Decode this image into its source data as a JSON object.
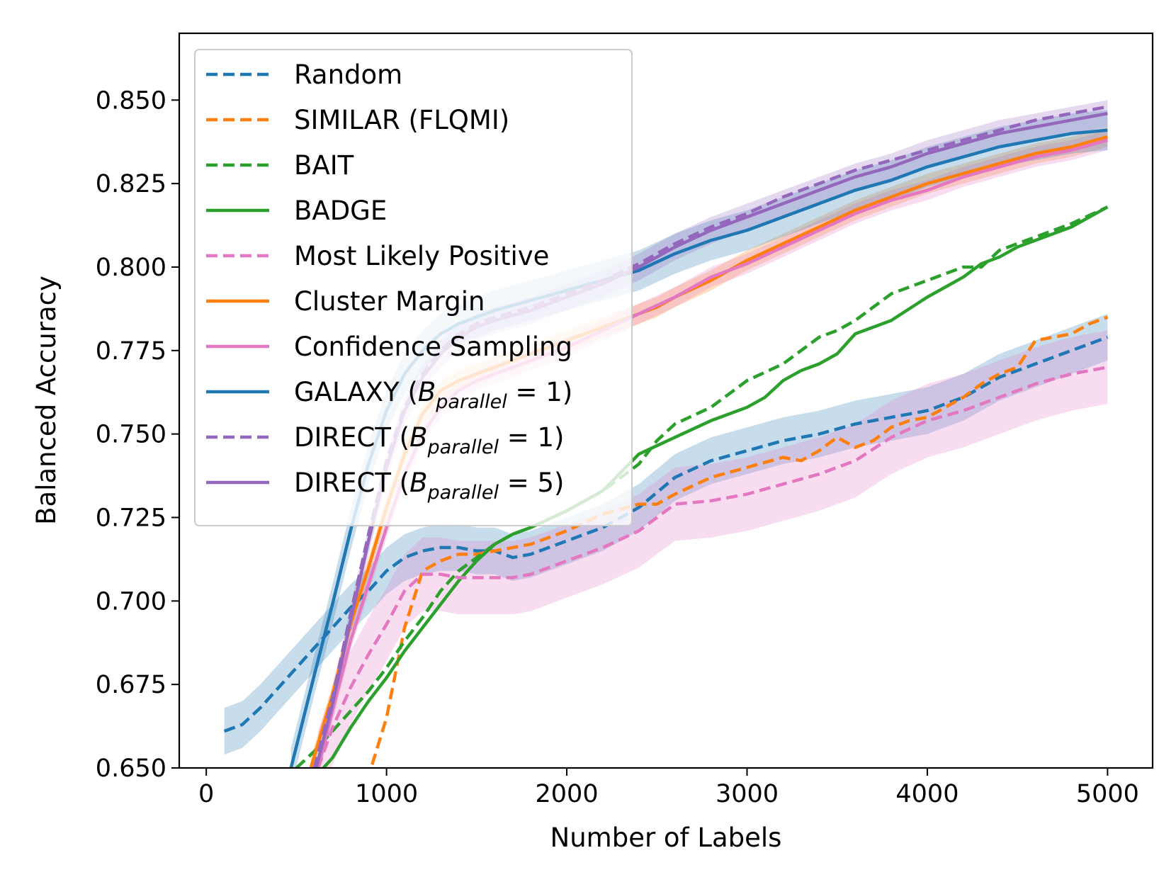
{
  "chart_data": {
    "type": "line",
    "xlabel": "Number of Labels",
    "ylabel": "Balanced Accuracy",
    "xlim": [
      -150,
      5250
    ],
    "ylim": [
      0.65,
      0.87
    ],
    "xticks": [
      0,
      1000,
      2000,
      3000,
      4000,
      5000
    ],
    "yticks": [
      0.65,
      0.675,
      0.7,
      0.725,
      0.75,
      0.775,
      0.8,
      0.825,
      0.85
    ],
    "xtick_labels": [
      "0",
      "1000",
      "2000",
      "3000",
      "4000",
      "5000"
    ],
    "ytick_labels": [
      "0.650",
      "0.675",
      "0.700",
      "0.725",
      "0.750",
      "0.775",
      "0.800",
      "0.825",
      "0.850"
    ],
    "grid": false,
    "legend_placement": "upper-left",
    "series": [
      {
        "name": "Random",
        "legend": [
          "Random"
        ],
        "color": "#1f77b4",
        "dashed": true,
        "band": 0.007,
        "x": [
          100,
          200,
          300,
          400,
          500,
          600,
          700,
          800,
          900,
          1000,
          1100,
          1200,
          1300,
          1400,
          1500,
          1600,
          1700,
          1800,
          1900,
          2000,
          2200,
          2400,
          2600,
          2800,
          3000,
          3200,
          3400,
          3600,
          3800,
          4000,
          4200,
          4400,
          4600,
          4800,
          5000
        ],
        "y": [
          0.661,
          0.663,
          0.668,
          0.674,
          0.68,
          0.686,
          0.692,
          0.698,
          0.703,
          0.709,
          0.713,
          0.715,
          0.716,
          0.716,
          0.715,
          0.715,
          0.713,
          0.714,
          0.716,
          0.718,
          0.722,
          0.728,
          0.737,
          0.742,
          0.745,
          0.748,
          0.75,
          0.753,
          0.755,
          0.757,
          0.761,
          0.767,
          0.771,
          0.775,
          0.779
        ]
      },
      {
        "name": "SIMILAR (FLQMI)",
        "legend": [
          "SIMILAR (FLQMI)"
        ],
        "color": "#ff7f0e",
        "dashed": true,
        "band": 0,
        "x": [
          920,
          1000,
          1100,
          1200,
          1300,
          1400,
          1500,
          1600,
          1700,
          1800,
          2000,
          2200,
          2400,
          2500,
          2600,
          2800,
          3000,
          3200,
          3300,
          3400,
          3500,
          3600,
          3700,
          3800,
          3900,
          4000,
          4200,
          4300,
          4400,
          4500,
          4600,
          4700,
          4800,
          4900,
          5000
        ],
        "y": [
          0.651,
          0.665,
          0.692,
          0.709,
          0.712,
          0.714,
          0.714,
          0.715,
          0.716,
          0.717,
          0.721,
          0.726,
          0.729,
          0.729,
          0.732,
          0.737,
          0.74,
          0.743,
          0.742,
          0.745,
          0.749,
          0.746,
          0.748,
          0.752,
          0.754,
          0.755,
          0.761,
          0.765,
          0.768,
          0.77,
          0.778,
          0.779,
          0.78,
          0.783,
          0.785
        ]
      },
      {
        "name": "BAIT",
        "legend": [
          "BAIT"
        ],
        "color": "#2ca02c",
        "dashed": true,
        "band": 0,
        "x": [
          500,
          600,
          700,
          800,
          900,
          1000,
          1100,
          1200,
          1300,
          1400,
          1500,
          1600,
          1700,
          1800,
          2000,
          2200,
          2400,
          2500,
          2600,
          2800,
          3000,
          3200,
          3400,
          3500,
          3600,
          3800,
          4000,
          4200,
          4300,
          4400,
          4600,
          4800,
          5000
        ],
        "y": [
          0.65,
          0.655,
          0.661,
          0.667,
          0.673,
          0.68,
          0.688,
          0.695,
          0.703,
          0.709,
          0.713,
          0.717,
          0.72,
          0.722,
          0.727,
          0.733,
          0.741,
          0.748,
          0.753,
          0.758,
          0.766,
          0.771,
          0.779,
          0.781,
          0.784,
          0.792,
          0.796,
          0.8,
          0.8,
          0.805,
          0.809,
          0.813,
          0.818
        ]
      },
      {
        "name": "BADGE",
        "legend": [
          "BADGE"
        ],
        "color": "#2ca02c",
        "dashed": false,
        "band": 0,
        "x": [
          650,
          700,
          800,
          900,
          1000,
          1100,
          1200,
          1300,
          1400,
          1500,
          1600,
          1700,
          1800,
          2000,
          2200,
          2400,
          2600,
          2800,
          3000,
          3100,
          3200,
          3300,
          3400,
          3500,
          3600,
          3800,
          4000,
          4100,
          4200,
          4300,
          4400,
          4500,
          4600,
          4800,
          4900,
          5000
        ],
        "y": [
          0.65,
          0.653,
          0.662,
          0.67,
          0.677,
          0.685,
          0.692,
          0.699,
          0.706,
          0.712,
          0.717,
          0.72,
          0.722,
          0.727,
          0.733,
          0.744,
          0.749,
          0.754,
          0.758,
          0.761,
          0.766,
          0.769,
          0.771,
          0.774,
          0.78,
          0.784,
          0.791,
          0.794,
          0.797,
          0.801,
          0.803,
          0.806,
          0.808,
          0.812,
          0.815,
          0.818
        ]
      },
      {
        "name": "Most Likely Positive",
        "legend": [
          "Most Likely Positive"
        ],
        "color": "#e377c2",
        "dashed": true,
        "band": 0.011,
        "x": [
          620,
          700,
          800,
          900,
          1000,
          1100,
          1200,
          1300,
          1400,
          1500,
          1600,
          1700,
          1800,
          2000,
          2200,
          2400,
          2600,
          2800,
          3000,
          3200,
          3400,
          3600,
          3800,
          4000,
          4200,
          4400,
          4600,
          4800,
          5000
        ],
        "y": [
          0.65,
          0.662,
          0.674,
          0.684,
          0.693,
          0.703,
          0.708,
          0.708,
          0.707,
          0.707,
          0.707,
          0.707,
          0.708,
          0.712,
          0.716,
          0.721,
          0.729,
          0.73,
          0.732,
          0.735,
          0.738,
          0.742,
          0.749,
          0.754,
          0.757,
          0.761,
          0.765,
          0.768,
          0.77
        ]
      },
      {
        "name": "Cluster Margin",
        "legend": [
          "Cluster Margin"
        ],
        "color": "#ff7f0e",
        "dashed": false,
        "band": 0.003,
        "x": [
          580,
          700,
          800,
          900,
          1000,
          1100,
          1200,
          1300,
          1400,
          1500,
          1600,
          1800,
          2000,
          2200,
          2400,
          2500,
          2600,
          2800,
          3000,
          3200,
          3400,
          3600,
          3800,
          4000,
          4200,
          4400,
          4600,
          4800,
          5000
        ],
        "y": [
          0.65,
          0.672,
          0.693,
          0.71,
          0.728,
          0.744,
          0.756,
          0.763,
          0.766,
          0.768,
          0.77,
          0.774,
          0.778,
          0.782,
          0.786,
          0.788,
          0.791,
          0.796,
          0.802,
          0.807,
          0.812,
          0.817,
          0.821,
          0.825,
          0.828,
          0.831,
          0.834,
          0.836,
          0.839
        ]
      },
      {
        "name": "Confidence Sampling",
        "legend": [
          "Confidence Sampling"
        ],
        "color": "#e377c2",
        "dashed": false,
        "band": 0.003,
        "x": [
          620,
          700,
          800,
          900,
          1000,
          1100,
          1200,
          1300,
          1400,
          1500,
          1600,
          1800,
          2000,
          2200,
          2400,
          2600,
          2800,
          3000,
          3200,
          3400,
          3600,
          3800,
          4000,
          4200,
          4400,
          4600,
          4800,
          5000
        ],
        "y": [
          0.65,
          0.667,
          0.688,
          0.705,
          0.722,
          0.738,
          0.75,
          0.758,
          0.763,
          0.766,
          0.768,
          0.772,
          0.776,
          0.781,
          0.786,
          0.791,
          0.797,
          0.801,
          0.806,
          0.811,
          0.816,
          0.82,
          0.823,
          0.827,
          0.83,
          0.833,
          0.835,
          0.838
        ]
      },
      {
        "name": "GALAXY (B_parallel = 1)",
        "legend": [
          "GALAXY (",
          "B",
          "parallel",
          " = 1)"
        ],
        "color": "#1f77b4",
        "dashed": false,
        "band": 0.006,
        "x": [
          470,
          600,
          700,
          800,
          900,
          1000,
          1100,
          1200,
          1300,
          1400,
          1500,
          1600,
          1800,
          2000,
          2200,
          2400,
          2600,
          2800,
          3000,
          3200,
          3400,
          3600,
          3800,
          4000,
          4200,
          4400,
          4600,
          4800,
          5000
        ],
        "y": [
          0.65,
          0.678,
          0.699,
          0.721,
          0.741,
          0.757,
          0.768,
          0.775,
          0.78,
          0.783,
          0.785,
          0.787,
          0.79,
          0.793,
          0.796,
          0.799,
          0.804,
          0.808,
          0.811,
          0.815,
          0.819,
          0.823,
          0.826,
          0.83,
          0.833,
          0.836,
          0.838,
          0.84,
          0.841
        ]
      },
      {
        "name": "DIRECT (B_parallel = 1)",
        "legend": [
          "DIRECT (",
          "B",
          "parallel",
          " = 1)"
        ],
        "color": "#9467bd",
        "dashed": true,
        "band": 0,
        "x": [
          600,
          700,
          800,
          900,
          1000,
          1100,
          1200,
          1300,
          1400,
          1500,
          1600,
          1800,
          2000,
          2200,
          2400,
          2600,
          2800,
          3000,
          3200,
          3400,
          3600,
          3800,
          4000,
          4200,
          4400,
          4600,
          4800,
          5000
        ],
        "y": [
          0.65,
          0.671,
          0.696,
          0.72,
          0.742,
          0.758,
          0.768,
          0.775,
          0.78,
          0.783,
          0.785,
          0.788,
          0.792,
          0.796,
          0.801,
          0.807,
          0.812,
          0.816,
          0.821,
          0.825,
          0.829,
          0.832,
          0.835,
          0.838,
          0.841,
          0.844,
          0.846,
          0.848
        ]
      },
      {
        "name": "DIRECT (B_parallel = 5)",
        "legend": [
          "DIRECT (",
          "B",
          "parallel",
          " = 5)"
        ],
        "color": "#9467bd",
        "dashed": false,
        "band": 0.004,
        "x": [
          610,
          700,
          800,
          900,
          1000,
          1100,
          1200,
          1300,
          1400,
          1500,
          1600,
          1800,
          2000,
          2200,
          2400,
          2600,
          2800,
          3000,
          3200,
          3400,
          3600,
          3800,
          4000,
          4200,
          4400,
          4600,
          4800,
          5000
        ],
        "y": [
          0.65,
          0.669,
          0.694,
          0.718,
          0.74,
          0.757,
          0.767,
          0.774,
          0.779,
          0.782,
          0.784,
          0.787,
          0.791,
          0.795,
          0.8,
          0.806,
          0.811,
          0.815,
          0.819,
          0.823,
          0.827,
          0.83,
          0.834,
          0.837,
          0.84,
          0.842,
          0.844,
          0.846
        ]
      }
    ]
  }
}
